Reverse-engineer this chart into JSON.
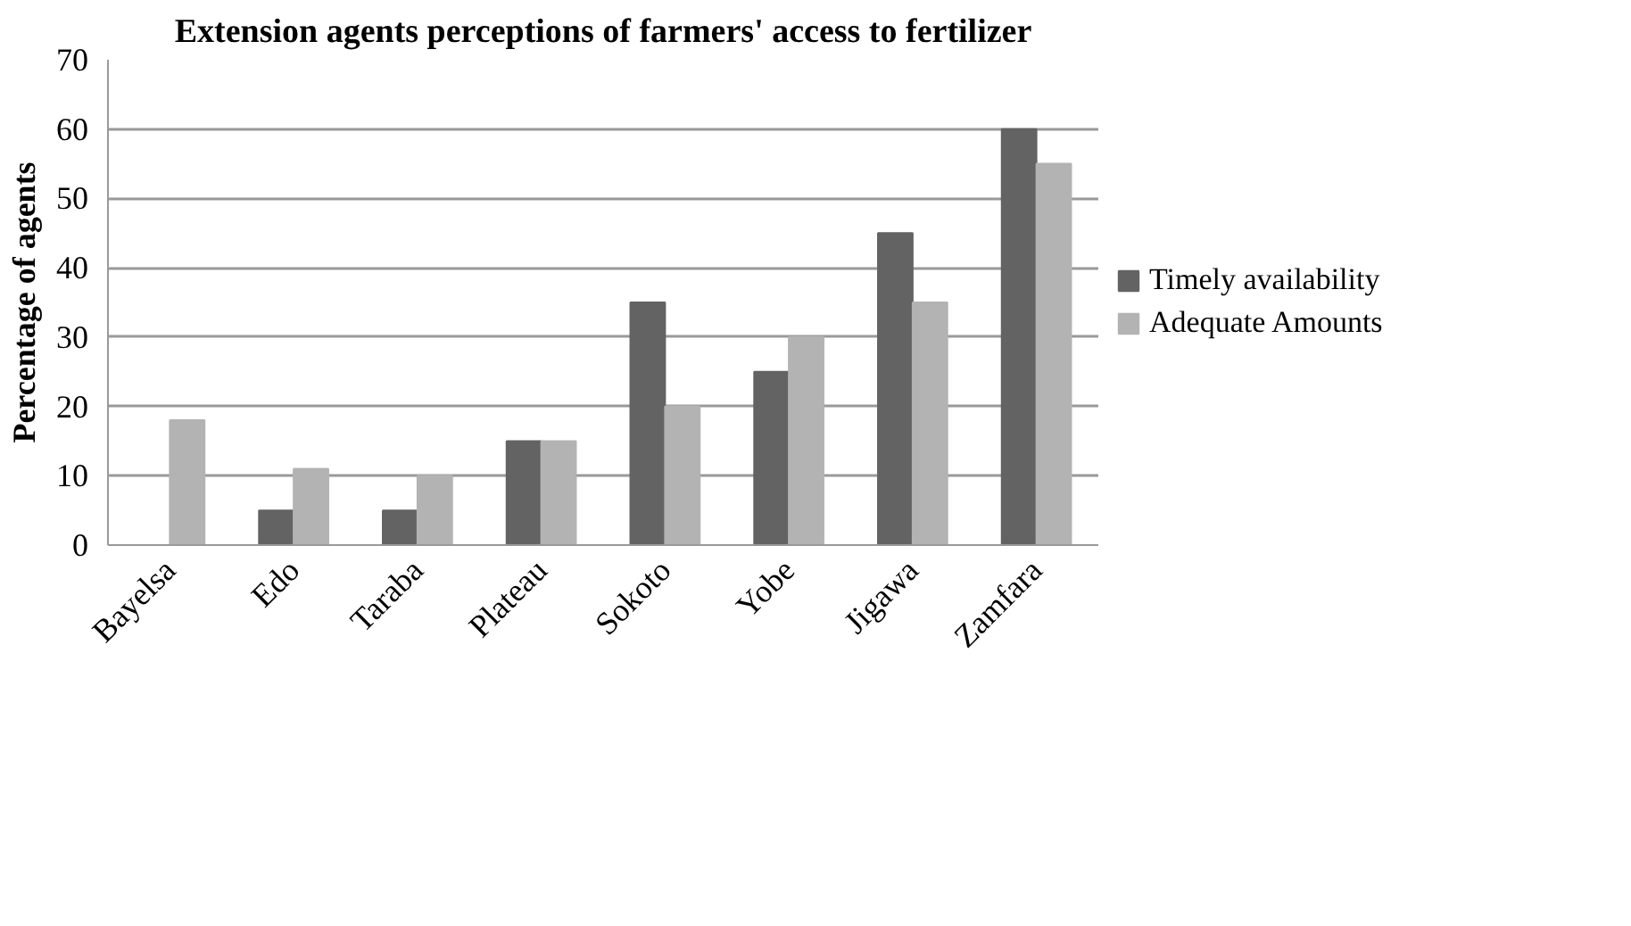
{
  "chart_data": {
    "type": "bar",
    "title": "Extension agents perceptions of farmers' access to fertilizer",
    "ylabel": "Percentage of agents",
    "categories": [
      "Bayelsa",
      "Edo",
      "Taraba",
      "Plateau",
      "Sokoto",
      "Yobe",
      "Jigawa",
      "Zamfara"
    ],
    "series": [
      {
        "name": "Timely availability",
        "color": "#636363",
        "values": [
          0,
          5,
          5,
          15,
          35,
          25,
          45,
          60
        ]
      },
      {
        "name": "Adequate Amounts",
        "color": "#b3b3b3",
        "values": [
          18,
          11,
          10,
          15,
          20,
          30,
          35,
          55
        ]
      }
    ],
    "ylim": [
      0,
      70
    ],
    "yticks": [
      0,
      10,
      20,
      30,
      40,
      50,
      60,
      70
    ],
    "grid": "y",
    "legend": "right"
  }
}
